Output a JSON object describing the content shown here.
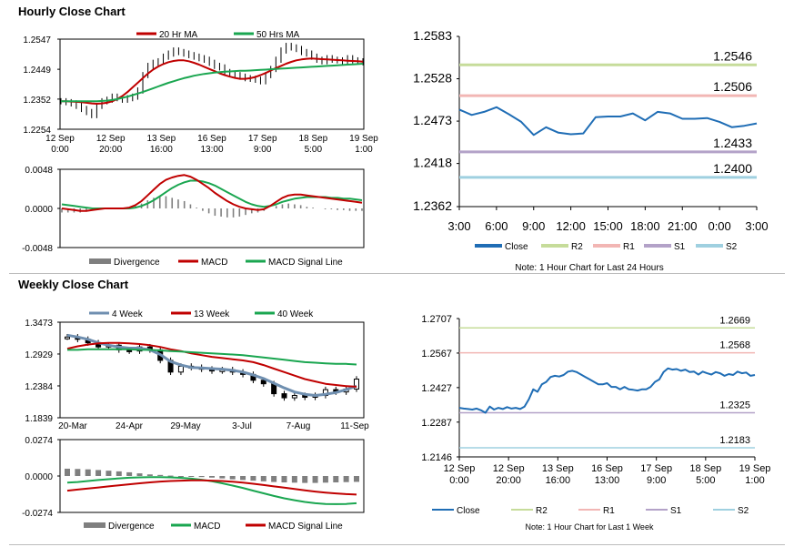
{
  "sections": {
    "hourly_title": "Hourly Close Chart",
    "weekly_title": "Weekly Close Chart"
  },
  "colors": {
    "close": "#1f6db5",
    "ma20": "#c00000",
    "ma50": "#1aa650",
    "r2": "#c6dc9a",
    "r1": "#f2b6b4",
    "s1": "#b3a2c8",
    "s2": "#9fd0e0",
    "divergence": "#7f7f7f",
    "macd": "#c00000",
    "signal": "#1aa650"
  },
  "chart_data": [
    {
      "id": "hourly_price",
      "type": "line",
      "legend": [
        "20 Hr MA",
        "50 Hrs MA"
      ],
      "yticks": [
        "1.2547",
        "1.2449",
        "1.2352",
        "1.2254"
      ],
      "ylim": [
        1.2254,
        1.2547
      ],
      "xticks": [
        [
          "12 Sep",
          "0:00"
        ],
        [
          "12 Sep",
          "20:00"
        ],
        [
          "13 Sep",
          "16:00"
        ],
        [
          "16 Sep",
          "13:00"
        ],
        [
          "17 Sep",
          "9:00"
        ],
        [
          "18 Sep",
          "5:00"
        ],
        [
          "19 Sep",
          "1:00"
        ]
      ],
      "close": [
        1.2345,
        1.2342,
        1.2338,
        1.233,
        1.232,
        1.231,
        1.23,
        1.233,
        1.2345,
        1.235,
        1.236,
        1.2355,
        1.235,
        1.2355,
        1.236,
        1.238,
        1.243,
        1.246,
        1.247,
        1.2475,
        1.249,
        1.25,
        1.251,
        1.2505,
        1.25,
        1.2495,
        1.249,
        1.2485,
        1.248,
        1.247,
        1.246,
        1.2455,
        1.244,
        1.2435,
        1.243,
        1.2425,
        1.242,
        1.2418,
        1.2415,
        1.241,
        1.243,
        1.245,
        1.248,
        1.251,
        1.2525,
        1.252,
        1.2515,
        1.2505,
        1.25,
        1.249,
        1.248,
        1.2475,
        1.2485,
        1.248,
        1.2478,
        1.2475,
        1.2485,
        1.2478,
        1.2475,
        1.2472
      ],
      "series": [
        {
          "name": "20 Hr MA",
          "values": [
            1.2345,
            1.2345,
            1.2344,
            1.2343,
            1.2342,
            1.234,
            1.2338,
            1.2337,
            1.2338,
            1.234,
            1.2345,
            1.2352,
            1.2362,
            1.2375,
            1.239,
            1.2405,
            1.242,
            1.2435,
            1.2448,
            1.2458,
            1.2466,
            1.2472,
            1.2476,
            1.2478,
            1.2478,
            1.2475,
            1.247,
            1.2464,
            1.2457,
            1.245,
            1.2443,
            1.2436,
            1.243,
            1.2425,
            1.2421,
            1.2418,
            1.2418,
            1.242,
            1.2424,
            1.243,
            1.2437,
            1.2445,
            1.2453,
            1.246,
            1.2467,
            1.2473,
            1.2478,
            1.2481,
            1.2483,
            1.2484,
            1.2483,
            1.2482,
            1.2481,
            1.248,
            1.2479,
            1.2478,
            1.2477,
            1.2476,
            1.2475,
            1.2474
          ]
        },
        {
          "name": "50 Hrs MA",
          "values": [
            1.2345,
            1.2345,
            1.2345,
            1.2345,
            1.2345,
            1.2345,
            1.2345,
            1.2345,
            1.2346,
            1.2347,
            1.2349,
            1.2352,
            1.2356,
            1.236,
            1.2365,
            1.237,
            1.2375,
            1.2381,
            1.2387,
            1.2393,
            1.2399,
            1.2405,
            1.241,
            1.2415,
            1.242,
            1.2424,
            1.2428,
            1.2431,
            1.2434,
            1.2436,
            1.2438,
            1.244,
            1.2441,
            1.2442,
            1.2443,
            1.2444,
            1.2444,
            1.2445,
            1.2446,
            1.2447,
            1.2448,
            1.2449,
            1.245,
            1.2451,
            1.2452,
            1.2453,
            1.2454,
            1.2455,
            1.2456,
            1.2457,
            1.2458,
            1.2459,
            1.246,
            1.2461,
            1.2462,
            1.2463,
            1.2464,
            1.2465,
            1.2466,
            1.2467
          ]
        }
      ]
    },
    {
      "id": "hourly_macd",
      "type": "bar",
      "yticks": [
        "0.0048",
        "0.0000",
        "-0.0048"
      ],
      "ylim": [
        -0.0048,
        0.0048
      ],
      "legend": [
        "Divergence",
        "MACD",
        "MACD Signal Line"
      ],
      "series": [
        {
          "name": "MACD",
          "values": [
            0.0,
            -0.0001,
            -0.0002,
            -0.0003,
            -0.0003,
            -0.0002,
            -0.0001,
            0.0,
            0.0,
            0.0,
            0.0,
            0.0001,
            0.0004,
            0.0009,
            0.0016,
            0.0023,
            0.003,
            0.0035,
            0.0038,
            0.004,
            0.0041,
            0.0039,
            0.0035,
            0.003,
            0.0025,
            0.0019,
            0.0014,
            0.0009,
            0.0005,
            0.0002,
            0.0,
            -0.0001,
            -0.0002,
            -0.0001,
            0.0003,
            0.0008,
            0.0013,
            0.0016,
            0.0017,
            0.0017,
            0.0016,
            0.0015,
            0.0014,
            0.0013,
            0.0012,
            0.0011,
            0.001,
            0.0009,
            0.0008,
            0.0007
          ]
        },
        {
          "name": "MACD Signal Line",
          "values": [
            0.0005,
            0.0004,
            0.0003,
            0.0002,
            0.0001,
            0.0,
            0.0,
            0.0,
            0.0,
            0.0,
            0.0,
            0.0,
            0.0001,
            0.0003,
            0.0006,
            0.001,
            0.0015,
            0.002,
            0.0025,
            0.0029,
            0.0032,
            0.0034,
            0.0034,
            0.0033,
            0.0031,
            0.0028,
            0.0024,
            0.002,
            0.0016,
            0.0012,
            0.0008,
            0.0005,
            0.0003,
            0.0002,
            0.0003,
            0.0005,
            0.0008,
            0.001,
            0.0012,
            0.0013,
            0.0014,
            0.0014,
            0.0014,
            0.0014,
            0.0013,
            0.0013,
            0.0012,
            0.0012,
            0.0011,
            0.001
          ]
        }
      ]
    },
    {
      "id": "hourly_24h",
      "type": "line",
      "yticks": [
        "1.2583",
        "1.2528",
        "1.2473",
        "1.2418",
        "1.2362"
      ],
      "ylim": [
        1.2362,
        1.2583
      ],
      "xticks": [
        "3:00",
        "6:00",
        "9:00",
        "12:00",
        "15:00",
        "18:00",
        "21:00",
        "0:00",
        "3:00"
      ],
      "close": [
        1.2488,
        1.2481,
        1.2485,
        1.2491,
        1.2482,
        1.2472,
        1.2455,
        1.2465,
        1.2458,
        1.2456,
        1.2457,
        1.2478,
        1.2479,
        1.2479,
        1.2483,
        1.2474,
        1.2485,
        1.2483,
        1.2476,
        1.2476,
        1.2477,
        1.2472,
        1.2465,
        1.2467,
        1.247
      ],
      "levels": [
        {
          "name": "R2",
          "value": 1.2546,
          "label": "1.2546"
        },
        {
          "name": "R1",
          "value": 1.2506,
          "label": "1.2506"
        },
        {
          "name": "S1",
          "value": 1.2433,
          "label": "1.2433"
        },
        {
          "name": "S2",
          "value": 1.24,
          "label": "1.2400"
        }
      ],
      "legend": [
        "Close",
        "R2",
        "R1",
        "S1",
        "S2"
      ],
      "note": "Note: 1 Hour Chart for Last 24 Hours"
    },
    {
      "id": "weekly_price",
      "type": "line",
      "legend": [
        "4 Week",
        "13 Week",
        "40 Week"
      ],
      "yticks": [
        "1.3473",
        "1.2929",
        "1.2384",
        "1.1839"
      ],
      "ylim": [
        1.1839,
        1.3473
      ],
      "xticks": [
        "20-Mar",
        "24-Apr",
        "29-May",
        "3-Jul",
        "7-Aug",
        "11-Sep"
      ],
      "close": [
        1.322,
        1.318,
        1.312,
        1.305,
        1.308,
        1.3,
        1.298,
        1.305,
        1.3,
        1.282,
        1.262,
        1.272,
        1.27,
        1.267,
        1.264,
        1.266,
        1.262,
        1.258,
        1.248,
        1.242,
        1.225,
        1.218,
        1.222,
        1.219,
        1.222,
        1.232,
        1.228,
        1.233,
        1.25
      ],
      "series": [
        {
          "name": "4 Week",
          "values": [
            1.325,
            1.322,
            1.318,
            1.312,
            1.308,
            1.305,
            1.303,
            1.303,
            1.3,
            1.292,
            1.28,
            1.274,
            1.27,
            1.269,
            1.268,
            1.267,
            1.265,
            1.262,
            1.257,
            1.251,
            1.243,
            1.235,
            1.228,
            1.224,
            1.222,
            1.224,
            1.227,
            1.232,
            1.238
          ]
        },
        {
          "name": "13 Week",
          "values": [
            1.302,
            1.306,
            1.309,
            1.311,
            1.312,
            1.312,
            1.311,
            1.31,
            1.308,
            1.305,
            1.301,
            1.298,
            1.294,
            1.291,
            1.288,
            1.286,
            1.284,
            1.282,
            1.279,
            1.274,
            1.268,
            1.262,
            1.256,
            1.25,
            1.246,
            1.242,
            1.24,
            1.238,
            1.237
          ]
        },
        {
          "name": "40 Week",
          "values": [
            1.3,
            1.3,
            1.301,
            1.301,
            1.301,
            1.301,
            1.301,
            1.3,
            1.3,
            1.299,
            1.298,
            1.297,
            1.296,
            1.295,
            1.294,
            1.293,
            1.292,
            1.291,
            1.289,
            1.287,
            1.285,
            1.283,
            1.281,
            1.279,
            1.278,
            1.277,
            1.276,
            1.276,
            1.275
          ]
        }
      ]
    },
    {
      "id": "weekly_macd",
      "type": "bar",
      "yticks": [
        "0.0274",
        "0.0000",
        "-0.0274"
      ],
      "ylim": [
        -0.0274,
        0.0274
      ],
      "legend": [
        "Divergence",
        "MACD",
        "MACD Signal Line"
      ],
      "divergence": [
        0.0055,
        0.0053,
        0.005,
        0.0045,
        0.004,
        0.0035,
        0.0028,
        0.002,
        0.0012,
        0.0008,
        0.0003,
        -0.0002,
        -0.0005,
        -0.0008,
        -0.0012,
        -0.0018,
        -0.0025,
        -0.003,
        -0.0035,
        -0.004,
        -0.0045,
        -0.0048,
        -0.005,
        -0.0052,
        -0.0052,
        -0.005,
        -0.0048,
        -0.0046,
        -0.0044
      ],
      "series": [
        {
          "name": "MACD",
          "values": [
            -0.005,
            -0.0045,
            -0.0038,
            -0.003,
            -0.0024,
            -0.0018,
            -0.0013,
            -0.001,
            -0.0008,
            -0.0008,
            -0.001,
            -0.0014,
            -0.002,
            -0.0028,
            -0.004,
            -0.0055,
            -0.0072,
            -0.009,
            -0.011,
            -0.013,
            -0.015,
            -0.0168,
            -0.0182,
            -0.0195,
            -0.0205,
            -0.021,
            -0.0212,
            -0.021,
            -0.0205
          ]
        },
        {
          "name": "MACD Signal Line",
          "values": [
            -0.011,
            -0.0102,
            -0.0094,
            -0.0086,
            -0.0078,
            -0.007,
            -0.0062,
            -0.0055,
            -0.0048,
            -0.0042,
            -0.0038,
            -0.0035,
            -0.0033,
            -0.0033,
            -0.0035,
            -0.0038,
            -0.0043,
            -0.005,
            -0.0058,
            -0.0068,
            -0.0078,
            -0.0088,
            -0.0098,
            -0.0108,
            -0.0117,
            -0.0125,
            -0.0131,
            -0.0136,
            -0.014
          ]
        }
      ]
    },
    {
      "id": "weekly_1h",
      "type": "line",
      "yticks": [
        "1.2707",
        "1.2567",
        "1.2427",
        "1.2287",
        "1.2146"
      ],
      "ylim": [
        1.2146,
        1.2707
      ],
      "xticks": [
        [
          "12 Sep",
          "0:00"
        ],
        [
          "12 Sep",
          "20:00"
        ],
        [
          "13 Sep",
          "16:00"
        ],
        [
          "16 Sep",
          "13:00"
        ],
        [
          "17 Sep",
          "9:00"
        ],
        [
          "18 Sep",
          "5:00"
        ],
        [
          "19 Sep",
          "1:00"
        ]
      ],
      "close": [
        1.2345,
        1.2342,
        1.234,
        1.2338,
        1.2342,
        1.2335,
        1.2325,
        1.235,
        1.2338,
        1.2345,
        1.234,
        1.2348,
        1.2342,
        1.2345,
        1.234,
        1.235,
        1.238,
        1.242,
        1.241,
        1.244,
        1.245,
        1.247,
        1.2475,
        1.2472,
        1.2478,
        1.2492,
        1.2495,
        1.249,
        1.248,
        1.247,
        1.246,
        1.245,
        1.244,
        1.244,
        1.2445,
        1.243,
        1.243,
        1.242,
        1.243,
        1.242,
        1.2418,
        1.2415,
        1.242,
        1.242,
        1.243,
        1.245,
        1.246,
        1.249,
        1.2505,
        1.25,
        1.2502,
        1.2495,
        1.25,
        1.249,
        1.2492,
        1.248,
        1.2492,
        1.2485,
        1.248,
        1.249,
        1.2485,
        1.2475,
        1.2482,
        1.2478,
        1.2492,
        1.2485,
        1.2488,
        1.2475,
        1.2478
      ],
      "levels": [
        {
          "name": "R2",
          "value": 1.2669,
          "label": "1.2669"
        },
        {
          "name": "R1",
          "value": 1.2568,
          "label": "1.2568"
        },
        {
          "name": "S1",
          "value": 1.2325,
          "label": "1.2325"
        },
        {
          "name": "S2",
          "value": 1.2183,
          "label": "1.2183"
        }
      ],
      "legend": [
        "Close",
        "R2",
        "R1",
        "S1",
        "S2"
      ],
      "note": "Note: 1 Hour Chart for Last 1 Week"
    }
  ]
}
